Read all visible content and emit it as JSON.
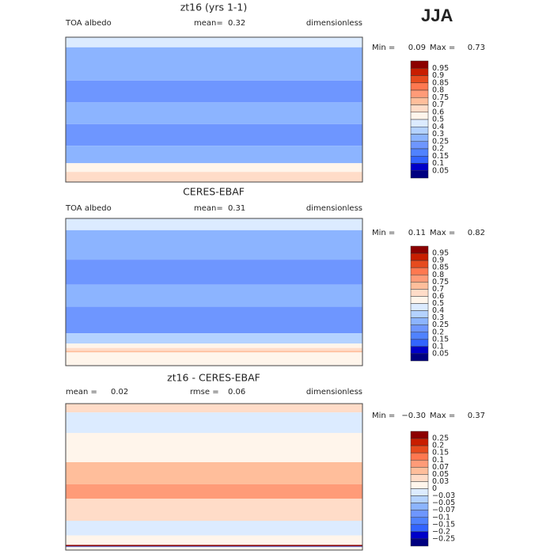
{
  "season": "JJA",
  "panels": [
    {
      "title": "zt16 (yrs 1-1)",
      "field": "TOA albedo",
      "stats": [
        {
          "label": "mean=",
          "value": 0.32
        }
      ],
      "units": "dimensionless",
      "min_label": "Min =",
      "min": 0.09,
      "max_label": "Max =",
      "max": 0.73,
      "levels": [
        0.95,
        0.9,
        0.85,
        0.8,
        0.75,
        0.7,
        0.6,
        0.5,
        0.4,
        0.3,
        0.25,
        0.2,
        0.15,
        0.1,
        0.05
      ],
      "colors": [
        "#8c0000",
        "#c81e00",
        "#e64b1e",
        "#ff7850",
        "#ff9b78",
        "#ffbe9b",
        "#ffdcc8",
        "#fff5eb",
        "#dcebff",
        "#b4d2ff",
        "#8cb4ff",
        "#6e96ff",
        "#5082ff",
        "#3264ff",
        "#0000c8",
        "#000080"
      ]
    },
    {
      "title": "CERES-EBAF",
      "field": "TOA albedo",
      "stats": [
        {
          "label": "mean=",
          "value": 0.31
        }
      ],
      "units": "dimensionless",
      "min_label": "Min =",
      "min": 0.11,
      "max_label": "Max =",
      "max": 0.82,
      "levels": [
        0.95,
        0.9,
        0.85,
        0.8,
        0.75,
        0.7,
        0.6,
        0.5,
        0.4,
        0.3,
        0.25,
        0.2,
        0.15,
        0.1,
        0.05
      ],
      "colors": [
        "#8c0000",
        "#c81e00",
        "#e64b1e",
        "#ff7850",
        "#ff9b78",
        "#ffbe9b",
        "#ffdcc8",
        "#fff5eb",
        "#dcebff",
        "#b4d2ff",
        "#8cb4ff",
        "#6e96ff",
        "#5082ff",
        "#3264ff",
        "#0000c8",
        "#000080"
      ]
    },
    {
      "title": "zt16 - CERES-EBAF",
      "stats": [
        {
          "label": "mean =",
          "value": 0.02
        },
        {
          "label": "rmse =",
          "value": 0.06
        }
      ],
      "units": "dimensionless",
      "min_label": "Min =",
      "min": {
        "value": -0.3,
        "label": "−0.30"
      },
      "max_label": "Max =",
      "max": 0.37,
      "levels": [
        0.25,
        0.2,
        0.15,
        0.1,
        0.07,
        0.05,
        0.03,
        0,
        {
          "value": -0.03,
          "label": "−0.03"
        },
        {
          "value": -0.05,
          "label": "−0.05"
        },
        {
          "value": -0.07,
          "label": "−0.07"
        },
        {
          "value": -0.1,
          "label": "−0.1"
        },
        {
          "value": -0.15,
          "label": "−0.15"
        },
        {
          "value": -0.2,
          "label": "−0.2"
        },
        {
          "value": -0.25,
          "label": "−0.25"
        }
      ],
      "colors": [
        "#8c0000",
        "#c81e00",
        "#e64b1e",
        "#ff7850",
        "#ff9b78",
        "#ffbe9b",
        "#ffdcc8",
        "#fff5eb",
        "#dcebff",
        "#b4d2ff",
        "#8cb4ff",
        "#6e96ff",
        "#5082ff",
        "#3264ff",
        "#0000c8",
        "#000080"
      ]
    }
  ]
}
